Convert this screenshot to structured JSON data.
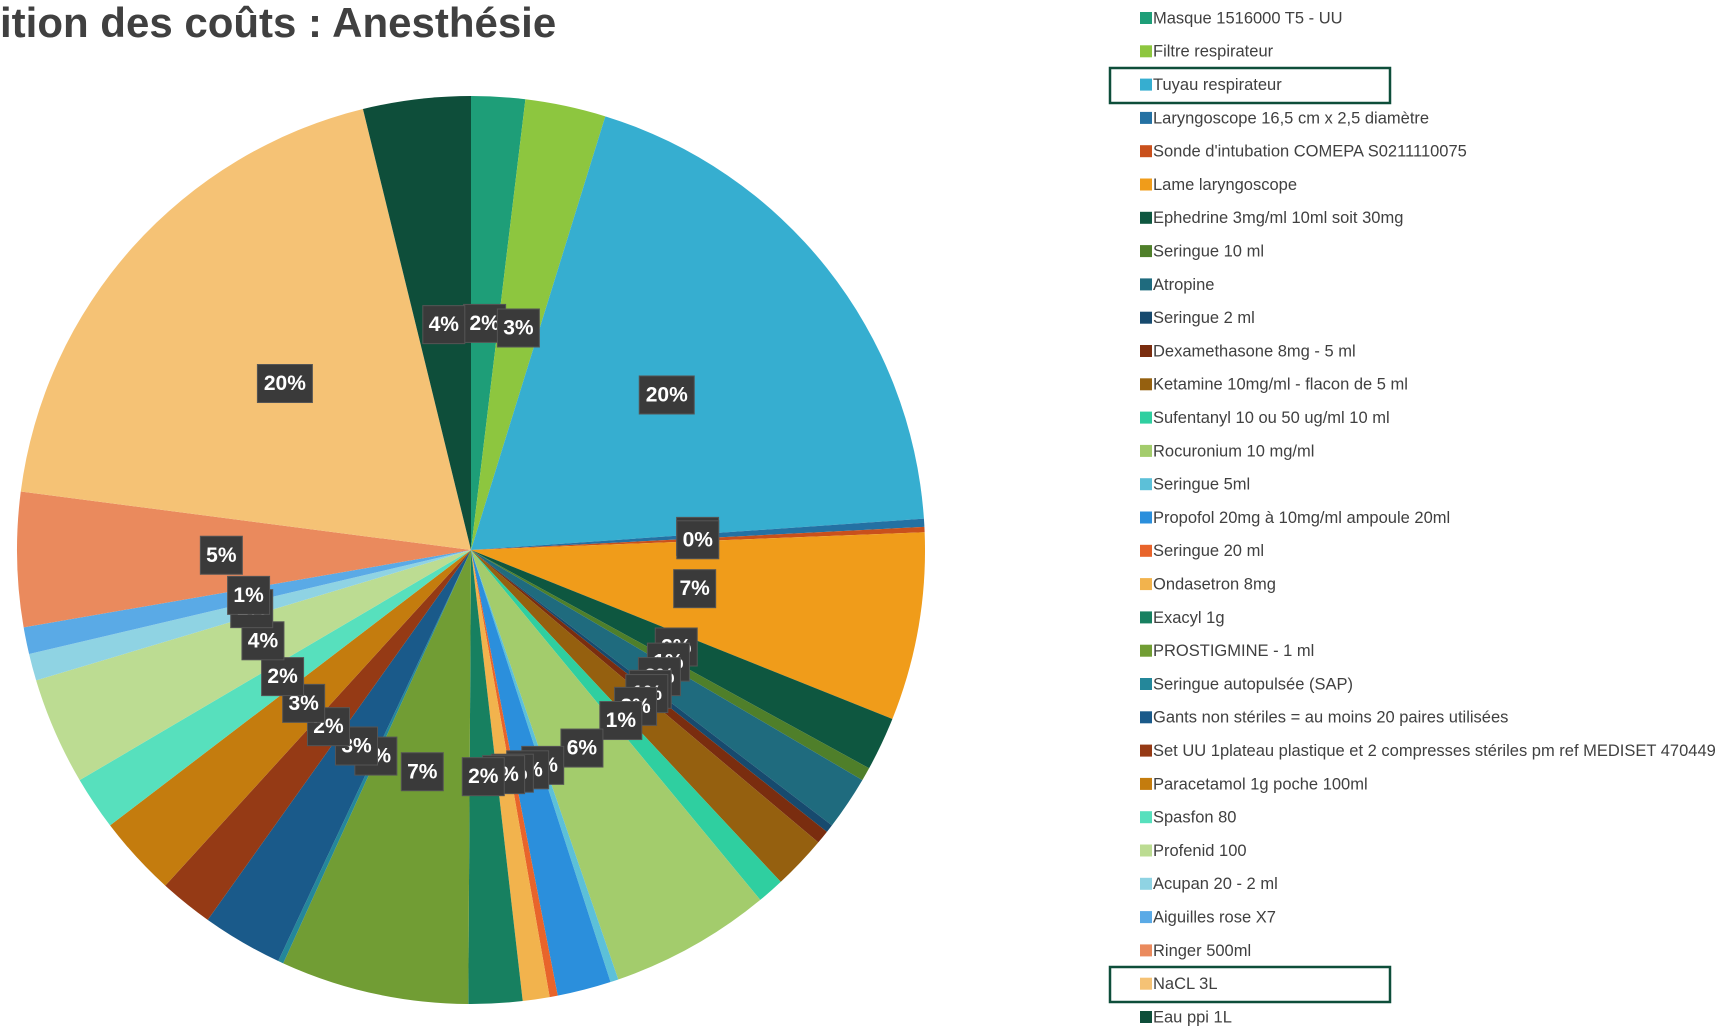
{
  "chart_data": {
    "type": "pie",
    "title": "ition des coûts : Anesthésie",
    "categories": [
      "Masque 1516000 T5 - UU",
      "Filtre respirateur",
      "Tuyau respirateur",
      "Laryngoscope 16,5 cm x 2,5 diamètre",
      "Sonde d'intubation COMEPA  S0211110075",
      "Lame laryngoscope",
      "Ephedrine 3mg/ml 10ml soit 30mg",
      "Seringue 10 ml",
      "Atropine",
      "Seringue 2 ml",
      "Dexamethasone 8mg - 5 ml",
      "Ketamine 10mg/ml - flacon de 5 ml",
      "Sufentanyl  10 ou 50 ug/ml 10 ml",
      "Rocuronium 10 mg/ml",
      "Seringue 5ml",
      "Propofol 20mg à 10mg/ml ampoule 20ml",
      "Seringue 20 ml",
      "Ondasetron 8mg",
      "Exacyl 1g",
      "PROSTIGMINE - 1 ml",
      "Seringue autopulsée (SAP)",
      "Gants non stériles = au moins 20 paires utilisées",
      "Set UU 1plateau plastique et 2 compresses stériles pm ref MEDISET 470449",
      "Paracetamol 1g poche 100ml",
      "Spasfon 80",
      "Profenid 100",
      "Acupan 20 - 2 ml",
      "Aiguilles rose X7",
      "Ringer 500ml",
      "NaCL 3L",
      "Eau ppi 1L"
    ],
    "values": [
      2,
      3,
      20,
      0.3,
      0.2,
      7,
      2,
      0.5,
      2,
      0.3,
      0.5,
      2,
      1,
      6,
      0.3,
      2,
      0.3,
      1,
      2,
      7,
      0.2,
      3,
      2,
      3,
      2,
      4,
      1,
      1,
      5,
      20,
      4
    ],
    "value_labels": [
      "2%",
      "3%",
      "20%",
      "0%",
      "0%",
      "7%",
      "2%",
      "1%",
      "2%",
      "0%",
      "1%",
      "2%",
      "1%",
      "6%",
      "0%",
      "2%",
      "0%",
      "1%",
      "2%",
      "7%",
      "0%",
      "3%",
      "2%",
      "3%",
      "2%",
      "4%",
      "1%",
      "1%",
      "5%",
      "20%",
      "4%"
    ],
    "colors": [
      "#1e9e78",
      "#8dc63f",
      "#36aed0",
      "#2471a3",
      "#c9501c",
      "#f09c1a",
      "#0e5740",
      "#4f7f2a",
      "#1f6b7e",
      "#174a6e",
      "#7a2d0f",
      "#95600f",
      "#2fcfa0",
      "#a3cc6c",
      "#5cc0d8",
      "#2b8fdc",
      "#e8642b",
      "#f2b34d",
      "#178060",
      "#719d34",
      "#24879a",
      "#1a5a8a",
      "#953a15",
      "#c47c0e",
      "#57e0bd",
      "#bcdc92",
      "#8fd3e3",
      "#5aaae6",
      "#ea8a5d",
      "#f5c275",
      "#0e4e3a"
    ],
    "legend": "right"
  }
}
